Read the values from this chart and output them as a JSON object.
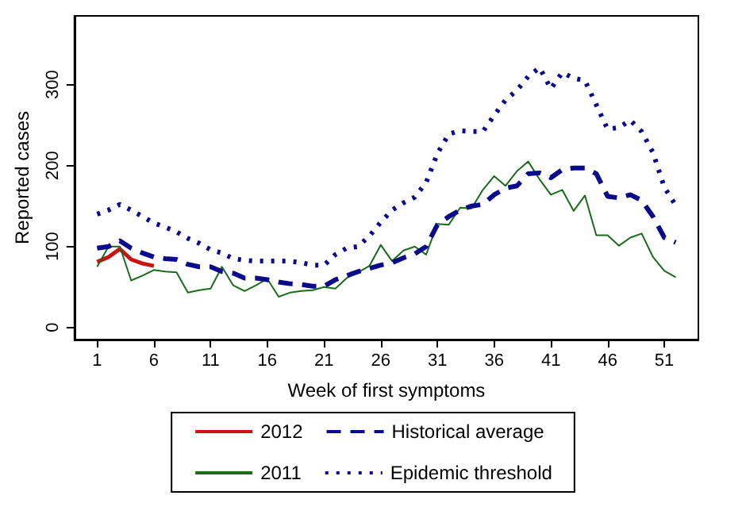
{
  "chart_data": {
    "type": "line",
    "xlabel": "Week of first symptoms",
    "ylabel": "Reported cases",
    "xlim": [
      -1,
      54
    ],
    "xticks": [
      1,
      6,
      11,
      16,
      21,
      26,
      31,
      36,
      41,
      46,
      51
    ],
    "ylim": [
      -15,
      385
    ],
    "yticks": [
      0,
      100,
      200,
      300
    ],
    "grid": false,
    "legend": "bottom",
    "marker": "none",
    "series": [
      {
        "name": "2012",
        "color": "#cc1111",
        "line_style": "solid",
        "x": [
          1,
          2,
          3,
          4,
          5,
          6
        ],
        "values": [
          81,
          87,
          97,
          84,
          79,
          76
        ]
      },
      {
        "name": "2011",
        "color": "#1a6b1a",
        "line_style": "solid",
        "x": [
          1,
          2,
          3,
          4,
          5,
          6,
          7,
          8,
          9,
          10,
          11,
          12,
          13,
          14,
          15,
          16,
          17,
          18,
          19,
          20,
          21,
          22,
          23,
          24,
          25,
          26,
          27,
          28,
          29,
          30,
          31,
          32,
          33,
          34,
          35,
          36,
          37,
          38,
          39,
          40,
          41,
          42,
          43,
          44,
          45,
          46,
          47,
          48,
          49,
          50,
          51,
          52
        ],
        "values": [
          75,
          100,
          100,
          58,
          64,
          71,
          69,
          68,
          43,
          46,
          48,
          75,
          52,
          45,
          52,
          60,
          38,
          43,
          45,
          46,
          50,
          48,
          61,
          68,
          76,
          102,
          82,
          95,
          100,
          90,
          128,
          127,
          148,
          147,
          170,
          187,
          175,
          193,
          205,
          183,
          164,
          170,
          144,
          163,
          114,
          114,
          101,
          111,
          116,
          87,
          70,
          62
        ]
      },
      {
        "name": "Historical average",
        "color": "#0a0a8c",
        "line_style": "dashed",
        "x": [
          1,
          2,
          3,
          4,
          5,
          6,
          7,
          8,
          9,
          10,
          11,
          12,
          13,
          14,
          15,
          16,
          17,
          18,
          19,
          20,
          21,
          22,
          23,
          24,
          25,
          26,
          27,
          28,
          29,
          30,
          31,
          32,
          33,
          34,
          35,
          36,
          37,
          38,
          39,
          40,
          41,
          42,
          43,
          44,
          45,
          46,
          47,
          48,
          49,
          50,
          51,
          52
        ],
        "values": [
          98,
          100,
          107,
          98,
          92,
          87,
          85,
          84,
          78,
          75,
          75,
          69,
          67,
          61,
          61,
          59,
          56,
          54,
          53,
          51,
          51,
          59,
          64,
          69,
          73,
          77,
          80,
          86,
          91,
          100,
          127,
          137,
          145,
          150,
          152,
          164,
          172,
          175,
          190,
          191,
          185,
          195,
          197,
          197,
          190,
          162,
          160,
          164,
          157,
          137,
          111,
          105
        ]
      },
      {
        "name": "Epidemic threshold",
        "color": "#0a0a8c",
        "line_style": "dotted",
        "x": [
          1,
          2,
          3,
          4,
          5,
          6,
          7,
          8,
          9,
          10,
          11,
          12,
          13,
          14,
          15,
          16,
          17,
          18,
          19,
          20,
          21,
          22,
          23,
          24,
          25,
          26,
          27,
          28,
          29,
          30,
          31,
          32,
          33,
          34,
          35,
          36,
          37,
          38,
          39,
          40,
          41,
          42,
          43,
          44,
          45,
          46,
          47,
          48,
          49,
          50,
          51,
          52
        ],
        "values": [
          140,
          145,
          152,
          145,
          137,
          129,
          124,
          118,
          110,
          104,
          96,
          92,
          85,
          83,
          82,
          82,
          82,
          82,
          80,
          77,
          77,
          90,
          98,
          100,
          113,
          130,
          145,
          154,
          161,
          179,
          215,
          239,
          243,
          242,
          242,
          262,
          281,
          293,
          310,
          321,
          295,
          315,
          308,
          305,
          275,
          245,
          247,
          256,
          242,
          216,
          173,
          151
        ]
      }
    ]
  }
}
